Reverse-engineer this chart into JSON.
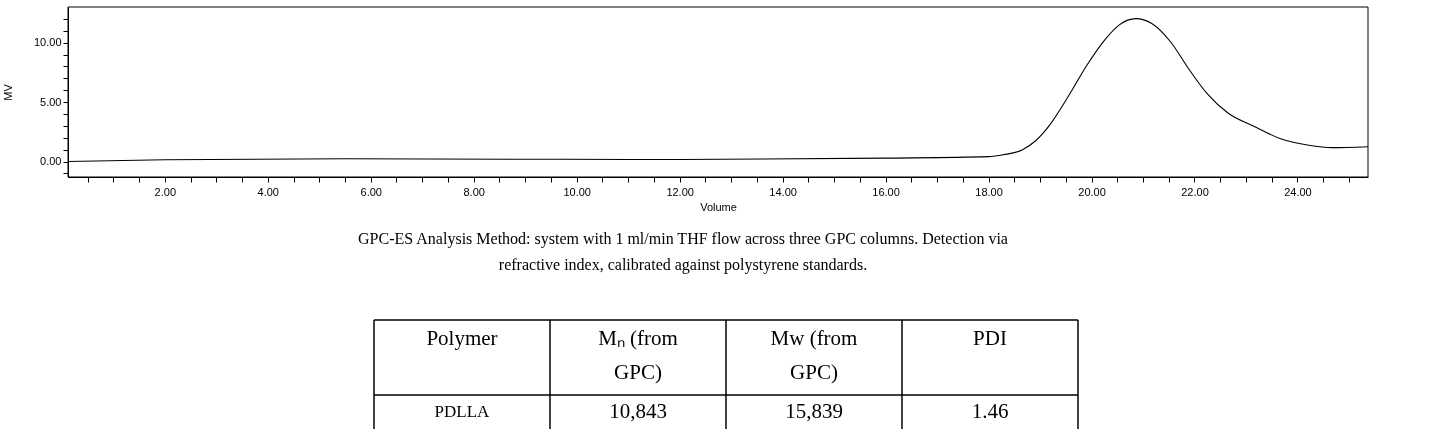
{
  "chart_data": {
    "type": "line",
    "xlabel": "Volume",
    "ylabel": "MV",
    "x": [
      0.12,
      2.0,
      5.5,
      12.0,
      16.0,
      18.0,
      18.29,
      18.65,
      18.92,
      19.19,
      19.55,
      19.91,
      20.27,
      20.54,
      20.86,
      21.17,
      21.53,
      21.89,
      22.25,
      22.65,
      23.15,
      23.69,
      24.22,
      24.67,
      25.37
    ],
    "series": [
      {
        "color": "#000000",
        "values": [
          0.0,
          0.15,
          0.23,
          0.17,
          0.29,
          0.41,
          0.57,
          0.97,
          1.77,
          3.09,
          5.49,
          8.1,
          10.3,
          11.5,
          12.02,
          11.62,
          10.1,
          7.78,
          5.69,
          4.08,
          2.97,
          1.89,
          1.37,
          1.17,
          1.25
        ]
      }
    ],
    "xlim": [
      0.12,
      25.37
    ],
    "xticks": [
      {
        "value": 0.5,
        "label": null
      },
      {
        "value": 1,
        "label": null
      },
      {
        "value": 1.5,
        "label": null
      },
      {
        "value": 2,
        "label": "2.00"
      },
      {
        "value": 2.5,
        "label": null
      },
      {
        "value": 3,
        "label": null
      },
      {
        "value": 3.5,
        "label": null
      },
      {
        "value": 4,
        "label": "4.00"
      },
      {
        "value": 4.5,
        "label": null
      },
      {
        "value": 5,
        "label": null
      },
      {
        "value": 5.5,
        "label": null
      },
      {
        "value": 6,
        "label": "6.00"
      },
      {
        "value": 6.5,
        "label": null
      },
      {
        "value": 7,
        "label": null
      },
      {
        "value": 7.5,
        "label": null
      },
      {
        "value": 8,
        "label": "8.00"
      },
      {
        "value": 8.5,
        "label": null
      },
      {
        "value": 9,
        "label": null
      },
      {
        "value": 9.5,
        "label": null
      },
      {
        "value": 10,
        "label": "10.00"
      },
      {
        "value": 10.5,
        "label": null
      },
      {
        "value": 11,
        "label": null
      },
      {
        "value": 11.5,
        "label": null
      },
      {
        "value": 12,
        "label": "12.00"
      },
      {
        "value": 12.5,
        "label": null
      },
      {
        "value": 13,
        "label": null
      },
      {
        "value": 13.5,
        "label": null
      },
      {
        "value": 14,
        "label": "14.00"
      },
      {
        "value": 14.5,
        "label": null
      },
      {
        "value": 15,
        "label": null
      },
      {
        "value": 15.5,
        "label": null
      },
      {
        "value": 16,
        "label": "16.00"
      },
      {
        "value": 16.5,
        "label": null
      },
      {
        "value": 17,
        "label": null
      },
      {
        "value": 17.5,
        "label": null
      },
      {
        "value": 18,
        "label": "18.00"
      },
      {
        "value": 18.5,
        "label": null
      },
      {
        "value": 19,
        "label": null
      },
      {
        "value": 19.5,
        "label": null
      },
      {
        "value": 20,
        "label": "20.00"
      },
      {
        "value": 20.5,
        "label": null
      },
      {
        "value": 21,
        "label": null
      },
      {
        "value": 21.5,
        "label": null
      },
      {
        "value": 22,
        "label": "22.00"
      },
      {
        "value": 22.5,
        "label": null
      },
      {
        "value": 23,
        "label": null
      },
      {
        "value": 23.5,
        "label": null
      },
      {
        "value": 24,
        "label": "24.00"
      },
      {
        "value": 24.5,
        "label": null
      },
      {
        "value": 25,
        "label": null
      }
    ],
    "ylim": [
      -1.3,
      13.0
    ],
    "yticks": [
      {
        "value": -1,
        "label": null
      },
      {
        "value": 0,
        "label": "0.00"
      },
      {
        "value": 1,
        "label": null
      },
      {
        "value": 2,
        "label": null
      },
      {
        "value": 3,
        "label": null
      },
      {
        "value": 4,
        "label": null
      },
      {
        "value": 5,
        "label": "5.00"
      },
      {
        "value": 6,
        "label": null
      },
      {
        "value": 7,
        "label": null
      },
      {
        "value": 8,
        "label": null
      },
      {
        "value": 9,
        "label": null
      },
      {
        "value": 10,
        "label": "10.00"
      },
      {
        "value": 11,
        "label": null
      },
      {
        "value": 12,
        "label": null
      }
    ],
    "grid": false,
    "marker": "none",
    "line_style": "solid",
    "annotations": [
      "GPC-ES Analysis Method: system with 1 ml/min THF flow across three GPC columns. Detection via refractive index, calibrated against polystyrene standards.",
      "Polymer",
      "Mₙ (from GPC)",
      "Mw (from GPC)",
      "PDI",
      "PDLLA",
      "10,843",
      "15,839",
      "1.46"
    ]
  }
}
